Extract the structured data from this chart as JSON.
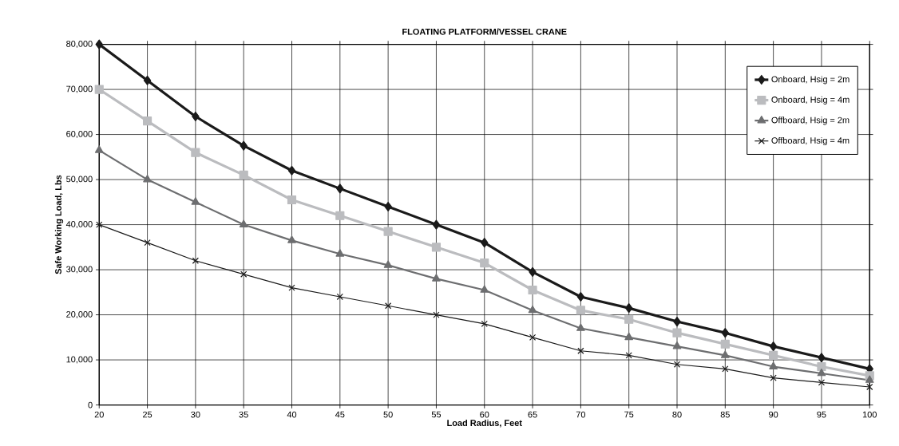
{
  "chart_data": {
    "type": "line",
    "title": "FLOATING PLATFORM/VESSEL CRANE",
    "xlabel": "Load Radius, Feet",
    "ylabel": "Safe Working Load, Lbs",
    "x": [
      20,
      25,
      30,
      35,
      40,
      45,
      50,
      55,
      60,
      65,
      70,
      75,
      80,
      85,
      90,
      95,
      100
    ],
    "series": [
      {
        "name": "Onboard, Hsig = 2m",
        "color": "#1a1a1a",
        "marker": "diamond",
        "values": [
          80000,
          72000,
          64000,
          57500,
          52000,
          48000,
          44000,
          40000,
          36000,
          29500,
          24000,
          21500,
          18500,
          16000,
          13000,
          10500,
          8000
        ]
      },
      {
        "name": "Onboard, Hsig = 4m",
        "color": "#bbbcbf",
        "marker": "square",
        "values": [
          70000,
          63000,
          56000,
          51000,
          45500,
          42000,
          38500,
          35000,
          31500,
          25500,
          21000,
          19000,
          16000,
          13500,
          11000,
          8500,
          6500
        ]
      },
      {
        "name": "Offboard, Hsig = 2m",
        "color": "#6d6e70",
        "marker": "triangle",
        "values": [
          56500,
          50000,
          45000,
          40000,
          36500,
          33500,
          31000,
          28000,
          25500,
          21000,
          17000,
          15000,
          13000,
          11000,
          8500,
          7000,
          5500
        ]
      },
      {
        "name": "Offboard, Hsig = 4m",
        "color": "#1a1a1a",
        "marker": "cross",
        "values": [
          40000,
          36000,
          32000,
          29000,
          26000,
          24000,
          22000,
          20000,
          18000,
          15000,
          12000,
          11000,
          9000,
          8000,
          6000,
          5000,
          4000
        ]
      }
    ],
    "xlim": [
      20,
      100
    ],
    "xticks": [
      20,
      25,
      30,
      35,
      40,
      45,
      50,
      55,
      60,
      65,
      70,
      75,
      80,
      85,
      90,
      95,
      100
    ],
    "ylim": [
      0,
      80000
    ],
    "yticks": [
      0,
      {
        "value": 10000,
        "label": "10,000"
      },
      {
        "value": 20000,
        "label": "20,000"
      },
      {
        "value": 30000,
        "label": "30,000"
      },
      {
        "value": 40000,
        "label": "40,000"
      },
      {
        "value": 50000,
        "label": "50,000"
      },
      {
        "value": 60000,
        "label": "60,000"
      },
      {
        "value": 70000,
        "label": "70,000"
      },
      {
        "value": 80000,
        "label": "80,000"
      }
    ],
    "grid": true,
    "legend": "top right",
    "line_style": "solid"
  }
}
